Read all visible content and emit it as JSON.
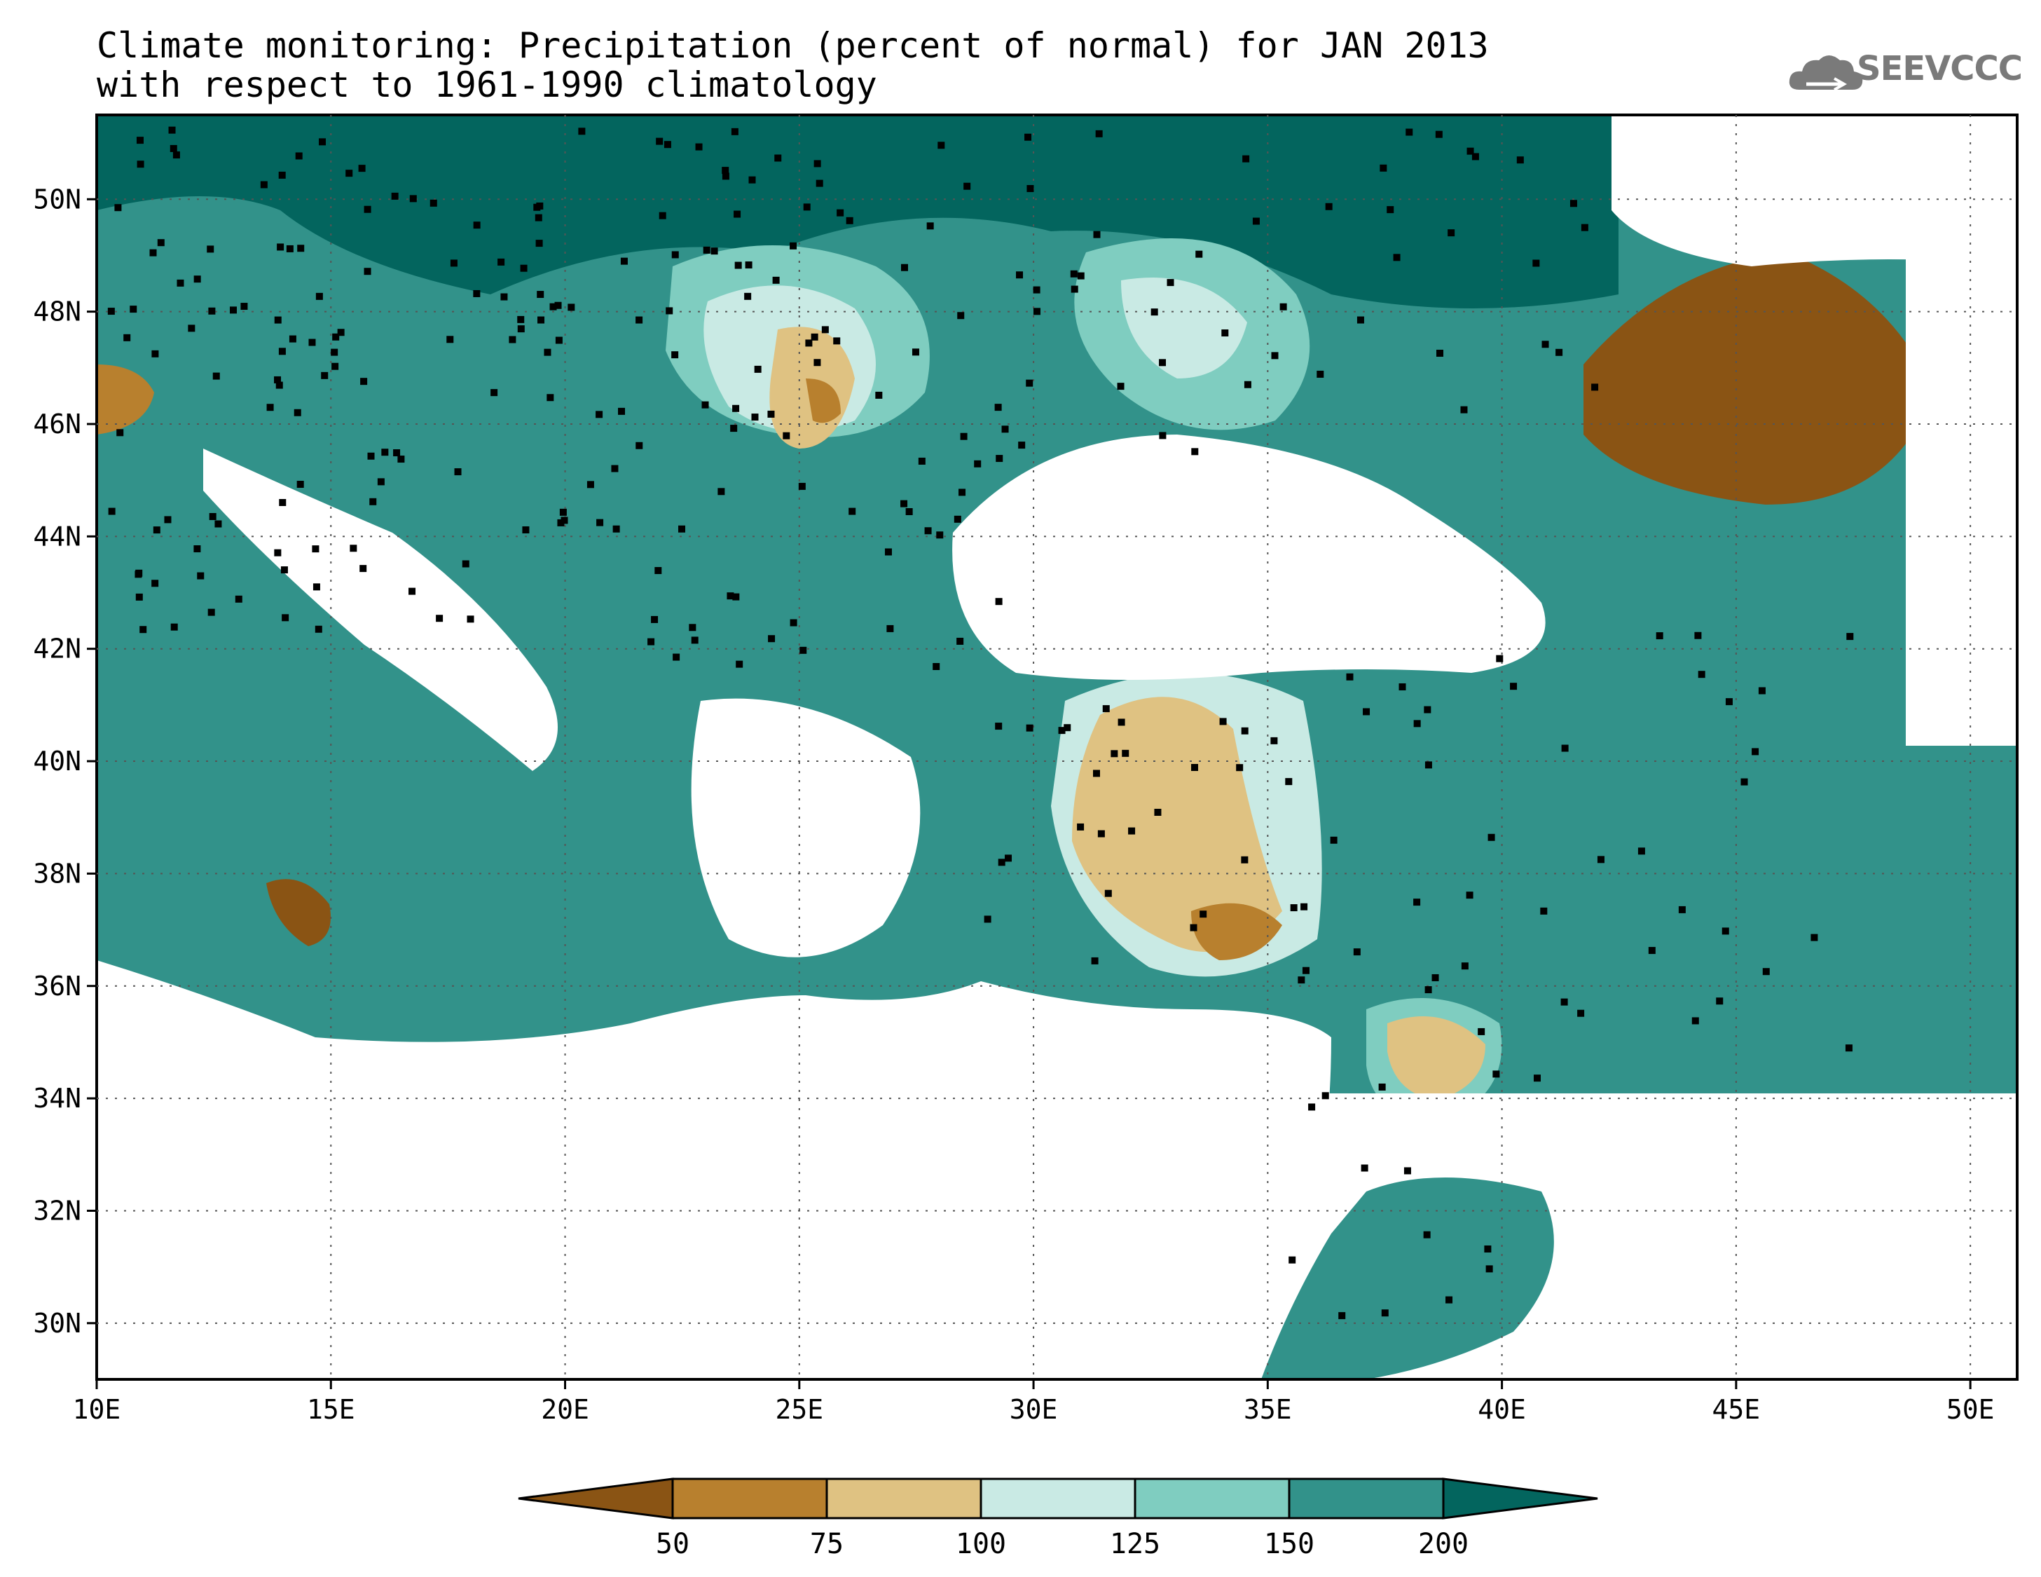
{
  "title": {
    "line1": "Climate monitoring: Precipitation (percent of normal) for JAN 2013",
    "line2": "with respect to 1961-1990 climatology"
  },
  "logo": {
    "text": "SEEVCCC",
    "icon": "cloud-icon"
  },
  "map": {
    "lon_range": [
      10,
      51
    ],
    "lat_range": [
      29,
      51.5
    ],
    "lon_ticks": [
      "10E",
      "15E",
      "20E",
      "25E",
      "30E",
      "35E",
      "40E",
      "45E",
      "50E"
    ],
    "lon_values": [
      10,
      15,
      20,
      25,
      30,
      35,
      40,
      45,
      50
    ],
    "lat_ticks": [
      "30N",
      "32N",
      "34N",
      "36N",
      "38N",
      "40N",
      "42N",
      "44N",
      "46N",
      "48N",
      "50N"
    ],
    "lat_values": [
      30,
      32,
      34,
      36,
      38,
      40,
      42,
      44,
      46,
      48,
      50
    ],
    "grid": "dotted"
  },
  "legend": {
    "labels": [
      "50",
      "75",
      "100",
      "125",
      "150",
      "200"
    ],
    "colors": [
      "#8a5414",
      "#b8802e",
      "#dfc282",
      "#c9eae4",
      "#7fcdc0",
      "#32928a",
      "#03655e"
    ]
  }
}
